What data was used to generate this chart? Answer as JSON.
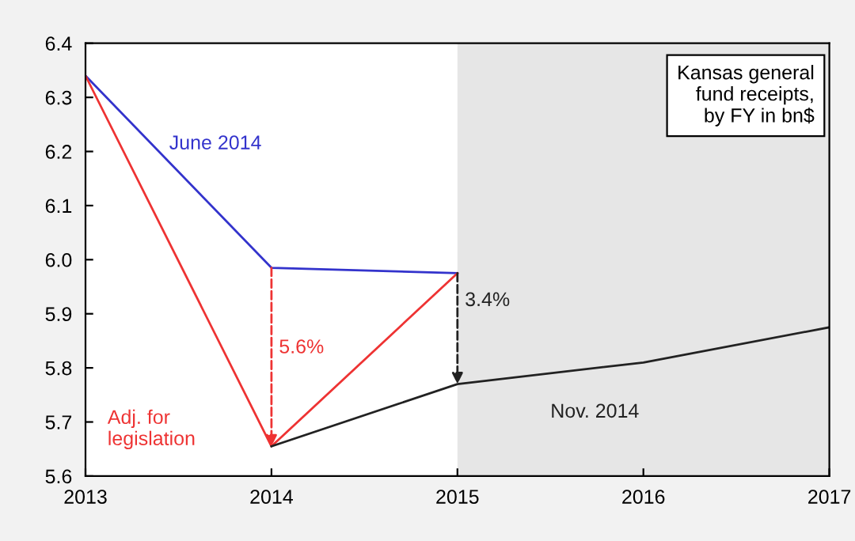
{
  "chart_data": {
    "type": "line",
    "xlim": [
      2013,
      2017
    ],
    "xticks": [
      2013,
      2014,
      2015,
      2016,
      2017
    ],
    "ylim": [
      5.6,
      6.4
    ],
    "yticks": [
      5.6,
      5.7,
      5.8,
      5.9,
      {
        "value": 6.0,
        "label": "6.0"
      },
      6.1,
      6.2,
      6.3,
      6.4
    ],
    "grid": false,
    "legend": false,
    "marker": "none",
    "line_style": "solid",
    "series": [
      {
        "name": "June 2014",
        "color": "#3333cc",
        "x": [
          2013,
          2014,
          2015
        ],
        "values": [
          6.34,
          5.985,
          5.975
        ]
      },
      {
        "name": "Adj. for\nlegislation",
        "color": "#ee3333",
        "x": [
          2013,
          2014,
          2015
        ],
        "values": [
          6.34,
          5.655,
          5.975
        ]
      },
      {
        "name": "Nov. 2014",
        "color": "#222222",
        "x": [
          2014,
          2015,
          2016,
          2017
        ],
        "values": [
          5.655,
          5.77,
          5.81,
          5.875
        ]
      }
    ],
    "bands": [
      {
        "axis": "x",
        "from": 2015,
        "to": 2017,
        "color": "#e6e6e6"
      }
    ],
    "annotations": [
      "5.6%",
      {
        "text": "3.4%",
        "x": 2015,
        "y": 5.77
      },
      "Kansas general\nfund receipts,\nby FY in bn$"
    ]
  }
}
